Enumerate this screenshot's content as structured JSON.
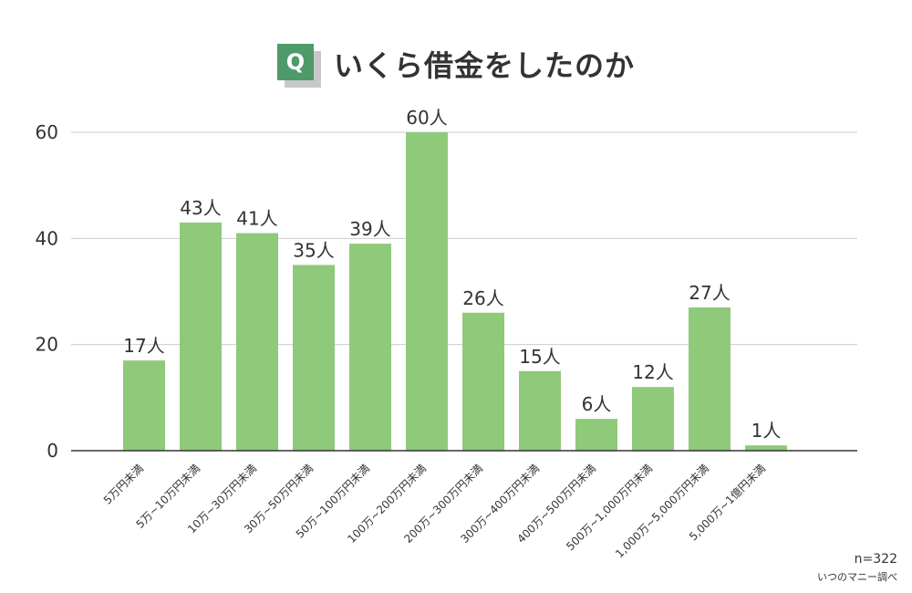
{
  "header": {
    "badge_letter": "Q",
    "badge_color": "#4e9a6b",
    "title": "いくら借金をしたのか"
  },
  "chart_data": {
    "type": "bar",
    "title": "いくら借金をしたのか",
    "xlabel": "",
    "ylabel": "",
    "categories": [
      "5万円未満",
      "5万~10万円未満",
      "10万~30万円未満",
      "30万~50万円未満",
      "50万~100万円未満",
      "100万~200万円未満",
      "200万~300万円未満",
      "300万~400万円未満",
      "400万~500万円未満",
      "500万~1,000万円未満",
      "1,000万~5,000万円未満",
      "5,000万~1億円未満"
    ],
    "values": [
      17,
      43,
      41,
      35,
      39,
      60,
      26,
      15,
      6,
      12,
      27,
      1
    ],
    "value_suffix": "人",
    "ylim": [
      0,
      60
    ],
    "yticks": [
      0,
      20,
      40,
      60
    ],
    "grid": true,
    "bar_color": "#8fc97a",
    "grid_color": "#cccccc",
    "axis_color": "#333333"
  },
  "footer": {
    "sample_size": "n=322",
    "source": "いつのマニー調べ"
  }
}
